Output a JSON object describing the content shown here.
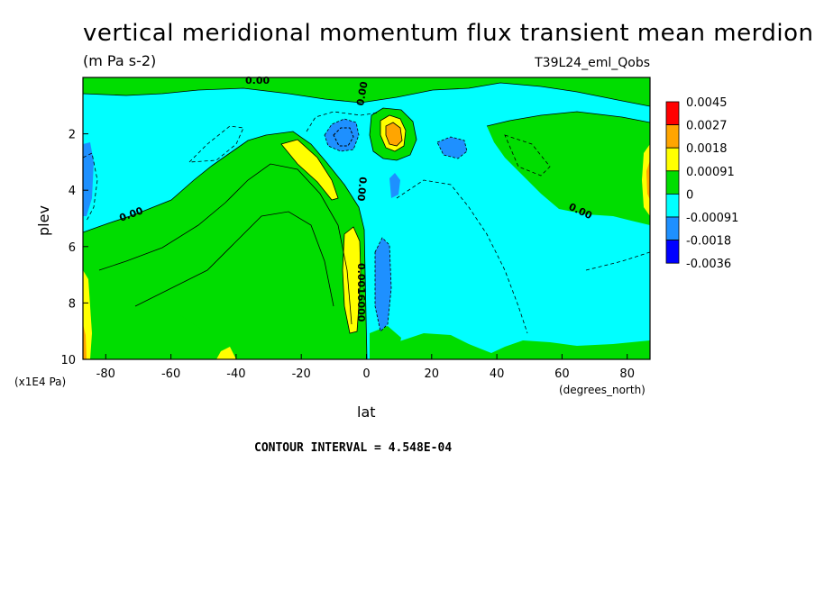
{
  "title": "vertical meridional momentum flux transient mean merdional",
  "units": "(m Pa s-2)",
  "run_name": "T39L24_eml_Qobs",
  "contour_interval": "CONTOUR INTERVAL = 4.548E-04",
  "chart_data": {
    "type": "heatmap",
    "xlabel": "lat",
    "xunit": "(degrees_north)",
    "ylabel": "plev",
    "yunit": "(x1E4 Pa)",
    "xlim": [
      -87,
      87
    ],
    "ylim": [
      0,
      10
    ],
    "y_inverted": true,
    "xticks": [
      "-80",
      "-60",
      "-40",
      "-20",
      "0",
      "20",
      "40",
      "60",
      "80"
    ],
    "xtick_values": [
      -80,
      -60,
      -40,
      -20,
      0,
      20,
      40,
      60,
      80
    ],
    "yticks": [
      "2",
      "4",
      "6",
      "8",
      "10"
    ],
    "ytick_values": [
      2,
      4,
      6,
      8,
      10
    ],
    "colorbar": {
      "labels": [
        "0.0045",
        "0.0027",
        "0.0018",
        "0.00091",
        "0",
        "-0.00091",
        "-0.0018",
        "-0.0036"
      ],
      "colors": [
        "#ff0000",
        "#ffa500",
        "#ffff00",
        "#00dd00",
        "#00ffff",
        "#1e90ff",
        "#0000ff"
      ]
    },
    "contour_labels": [
      "0.00",
      "0.00",
      "0.00",
      "0.00",
      "0.00",
      "0.0016000"
    ],
    "regions": [
      {
        "level": "0 to 0.00091",
        "color": "#00dd00",
        "x": [
          -87,
          0
        ],
        "y": [
          4.5,
          10
        ]
      },
      {
        "level": "0 to 0.00091",
        "color": "#00dd00",
        "x": [
          -30,
          0
        ],
        "y": [
          2,
          10
        ]
      },
      {
        "level": "0.00091 to 0.0018",
        "color": "#ffff00",
        "x": [
          -7,
          -4
        ],
        "y": [
          5.5,
          9.5
        ]
      },
      {
        "level": "0.0018 to 0.0027",
        "color": "#ffa500",
        "x": [
          7,
          13
        ],
        "y": [
          1.6,
          2.8
        ]
      },
      {
        "level": "-0.0018 to -0.00091",
        "color": "#1e90ff",
        "x": [
          -12,
          -3
        ],
        "y": [
          1.5,
          2.6
        ]
      },
      {
        "level": "-0.0018 to -0.00091",
        "color": "#1e90ff",
        "x": [
          3,
          8
        ],
        "y": [
          5.5,
          9
        ]
      },
      {
        "level": "-0.0018 to -0.00091",
        "color": "#1e90ff",
        "x": [
          22,
          32
        ],
        "y": [
          2.2,
          3
        ]
      },
      {
        "level": "0 to 0.00091",
        "color": "#00dd00",
        "x": [
          35,
          87
        ],
        "y": [
          1.5,
          4
        ]
      },
      {
        "level": "0 to 0.00091",
        "color": "#00dd00",
        "x": [
          10,
          87
        ],
        "y": [
          8.5,
          10
        ]
      }
    ]
  }
}
